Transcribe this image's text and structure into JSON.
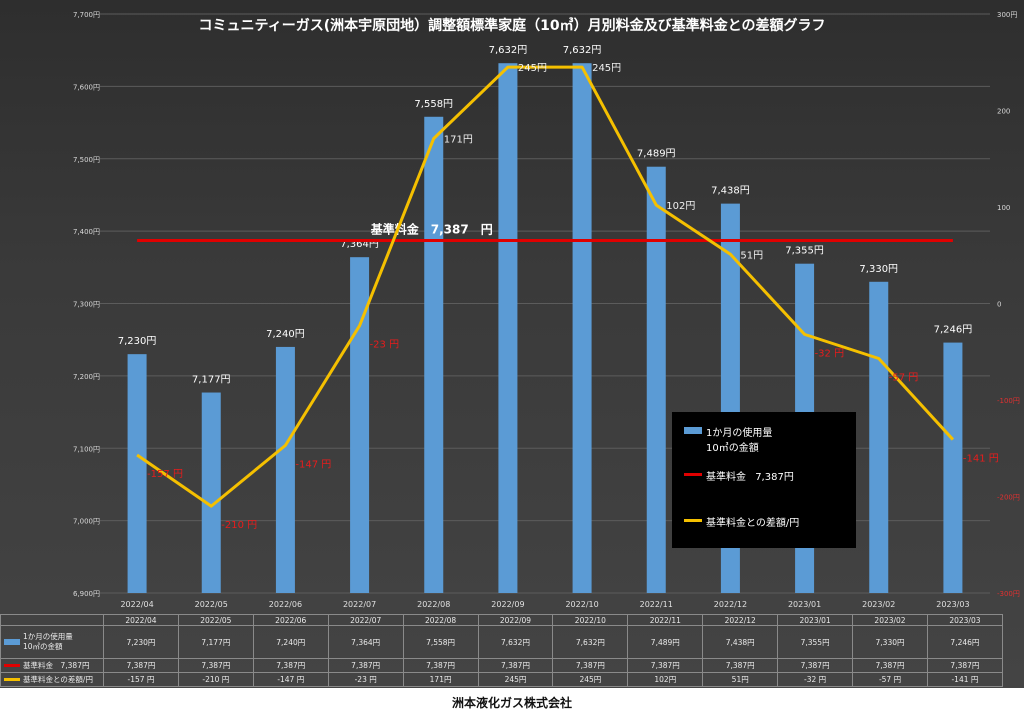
{
  "footer_text": "洲本液化ガス株式会社",
  "legend": {
    "bar_label_line1": "1か月の使用量",
    "bar_label_line2": "10㎥の金額",
    "base_label": "基準料金",
    "base_value": "7,387円",
    "diff_label": "基準料金との差額/円"
  },
  "table": {
    "rows": [
      {
        "header": "1か月の使用量\n10㎥の金額",
        "color": "#5b9bd5",
        "cells": [
          "7,230円",
          "7,177円",
          "7,240円",
          "7,364円",
          "7,558円",
          "7,632円",
          "7,632円",
          "7,489円",
          "7,438円",
          "7,355円",
          "7,330円",
          "7,246円"
        ]
      },
      {
        "header": "基準料金　7,387円",
        "color": "#e00000",
        "cells": [
          "7,387円",
          "7,387円",
          "7,387円",
          "7,387円",
          "7,387円",
          "7,387円",
          "7,387円",
          "7,387円",
          "7,387円",
          "7,387円",
          "7,387円",
          "7,387円"
        ]
      },
      {
        "header": "基準料金との差額/円",
        "color": "#f5c000",
        "cells": [
          "-157 円",
          "-210 円",
          "-147 円",
          "-23 円",
          "171円",
          "245円",
          "245円",
          "102円",
          "51円",
          "-32 円",
          "-57 円",
          "-141 円"
        ]
      }
    ]
  },
  "chart_data": {
    "type": "bar",
    "title": "コミュニティーガス(洲本宇原団地）調整額標準家庭（10㎥）月別料金及び基準料金との差額グラフ",
    "categories": [
      "2022/04",
      "2022/05",
      "2022/06",
      "2022/07",
      "2022/08",
      "2022/09",
      "2022/10",
      "2022/11",
      "2022/12",
      "2023/01",
      "2023/02",
      "2023/03"
    ],
    "ylim": [
      6900,
      7700
    ],
    "y2lim": [
      -300,
      300
    ],
    "y_ticks": [
      "6,900円",
      "7,000円",
      "7,100円",
      "7,200円",
      "7,300円",
      "7,400円",
      "7,500円",
      "7,600円",
      "7,700円"
    ],
    "y2_ticks": [
      "-300円",
      "-200円",
      "-100円",
      "0",
      "100",
      "200",
      "300円"
    ],
    "series": [
      {
        "name": "1か月の使用量\n10㎥の金額",
        "kind": "bar",
        "color": "#5b9bd5",
        "values": [
          7230,
          7177,
          7240,
          7364,
          7558,
          7632,
          7632,
          7489,
          7438,
          7355,
          7330,
          7246
        ],
        "labels": [
          "7,230円",
          "7,177円",
          "7,240円",
          "7,364円",
          "7,558円",
          "7,632円",
          "7,632円",
          "7,489円",
          "7,438円",
          "7,355円",
          "7,330円",
          "7,246円"
        ]
      },
      {
        "name": "基準料金　7,387円",
        "kind": "hline",
        "color": "#e00000",
        "value": 7387,
        "annotation": "基準料金　7,387　円"
      },
      {
        "name": "基準料金との差額/円",
        "kind": "line",
        "axis": "secondary",
        "color": "#f5c000",
        "values": [
          -157,
          -210,
          -147,
          -23,
          171,
          245,
          245,
          102,
          51,
          -32,
          -57,
          -141
        ],
        "labels": [
          "-157 円",
          "-210 円",
          "-147 円",
          "-23 円",
          "171円",
          "245円",
          "245円",
          "102円",
          "51円",
          "-32 円",
          "-57 円",
          "-141 円"
        ]
      }
    ],
    "grid": true,
    "legend_position": "right-bottom"
  }
}
